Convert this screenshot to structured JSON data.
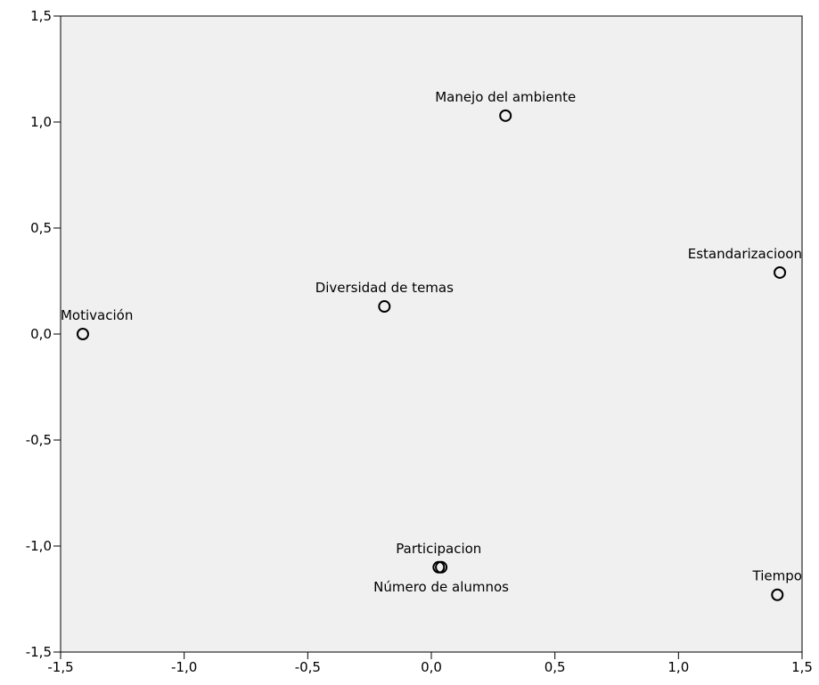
{
  "chart_data": {
    "type": "scatter",
    "title": "",
    "xlabel": "",
    "ylabel": "",
    "xlim": [
      -1.5,
      1.5
    ],
    "ylim": [
      -1.5,
      1.5
    ],
    "grid": false,
    "x_ticks": [
      {
        "value": -1.5,
        "label": "-1,5"
      },
      {
        "value": -1.0,
        "label": "-1,0"
      },
      {
        "value": -0.5,
        "label": "-0,5"
      },
      {
        "value": 0.0,
        "label": "0,0"
      },
      {
        "value": 0.5,
        "label": "0,5"
      },
      {
        "value": 1.0,
        "label": "1,0"
      },
      {
        "value": 1.5,
        "label": "1,5"
      }
    ],
    "y_ticks": [
      {
        "value": 1.5,
        "label": "1,5"
      },
      {
        "value": 1.0,
        "label": "1,0"
      },
      {
        "value": 0.5,
        "label": "0,5"
      },
      {
        "value": 0.0,
        "label": "0,0"
      },
      {
        "value": -0.5,
        "label": "-0,5"
      },
      {
        "value": -1.0,
        "label": "-1,0"
      },
      {
        "value": -1.5,
        "label": "-1,5"
      }
    ],
    "points": [
      {
        "label": "Manejo del ambiente",
        "x": 0.3,
        "y": 1.03,
        "label_pos": "above"
      },
      {
        "label": "Estandarizacioon",
        "x": 1.41,
        "y": 0.29,
        "label_pos": "above-left"
      },
      {
        "label": "Diversidad de temas",
        "x": -0.19,
        "y": 0.13,
        "label_pos": "above"
      },
      {
        "label": "Motivación",
        "x": -1.41,
        "y": 0.0,
        "label_pos": "above"
      },
      {
        "label": "Participacion",
        "x": 0.03,
        "y": -1.1,
        "label_pos": "above"
      },
      {
        "label": "Número de alumnos",
        "x": 0.04,
        "y": -1.1,
        "label_pos": "below"
      },
      {
        "label": "Tiempo",
        "x": 1.4,
        "y": -1.23,
        "label_pos": "above"
      }
    ],
    "colors": {
      "plot_background": "#f0f0f0",
      "axis": "#000000",
      "marker": "#000000"
    }
  }
}
